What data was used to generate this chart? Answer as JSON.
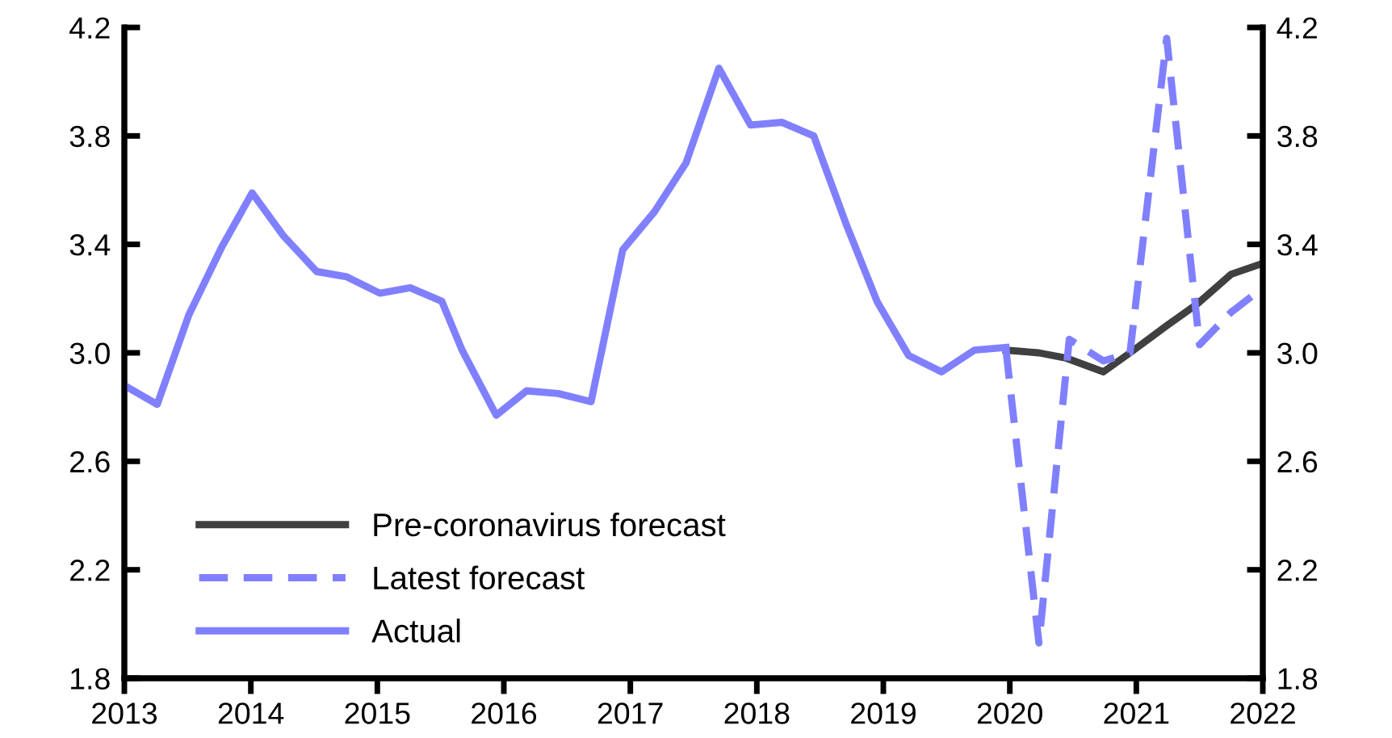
{
  "chart_data": {
    "type": "line",
    "xlim": [
      2013,
      2022
    ],
    "xticks": [
      2013,
      2014,
      2015,
      2016,
      2017,
      2018,
      2019,
      2020,
      2021,
      2022
    ],
    "ylim": [
      1.8,
      4.2
    ],
    "yticks": [
      {
        "value": 1.8,
        "label": "1.8"
      },
      {
        "value": 2.2,
        "label": "2.2"
      },
      {
        "value": 2.6,
        "label": "2.6"
      },
      {
        "value": 3.0,
        "label": "3.0"
      },
      {
        "value": 3.4,
        "label": "3.4"
      },
      {
        "value": 3.8,
        "label": "3.8"
      },
      {
        "value": 4.2,
        "label": "4.2"
      }
    ],
    "y2lim": [
      1.8,
      4.2
    ],
    "y2ticks": [
      {
        "value": 1.8,
        "label": "1.8"
      },
      {
        "value": 2.2,
        "label": "2.2"
      },
      {
        "value": 2.6,
        "label": "2.6"
      },
      {
        "value": 3.0,
        "label": "3.0"
      },
      {
        "value": 3.4,
        "label": "3.4"
      },
      {
        "value": 3.8,
        "label": "3.8"
      },
      {
        "value": 4.2,
        "label": "4.2"
      }
    ],
    "grid": false,
    "legend": "bottom left",
    "marker": "none",
    "series": [
      {
        "name": "Pre-coronavirus forecast",
        "color": "#404040",
        "line_style": "solid",
        "x": [
          2019.97,
          2020.23,
          2020.45,
          2020.74,
          2020.95,
          2021.24,
          2021.48,
          2021.75,
          2022.0
        ],
        "values": [
          3.01,
          3.0,
          2.98,
          2.93,
          3.0,
          3.1,
          3.18,
          3.29,
          3.33
        ]
      },
      {
        "name": "Latest forecast",
        "color": "#8080ff",
        "line_style": "dashed",
        "x": [
          2019.97,
          2020.23,
          2020.47,
          2020.74,
          2020.95,
          2021.24,
          2021.5,
          2021.75,
          2022.0
        ],
        "values": [
          3.01,
          1.93,
          3.05,
          2.97,
          3.0,
          4.16,
          3.03,
          3.15,
          3.24
        ]
      },
      {
        "name": "Actual",
        "color": "#8080ff",
        "line_style": "solid",
        "x": [
          2013.0,
          2013.26,
          2013.51,
          2013.77,
          2014.01,
          2014.26,
          2014.52,
          2014.76,
          2015.02,
          2015.26,
          2015.51,
          2015.67,
          2015.94,
          2016.18,
          2016.43,
          2016.69,
          2016.94,
          2017.19,
          2017.44,
          2017.7,
          2017.95,
          2018.2,
          2018.45,
          2018.71,
          2018.95,
          2019.2,
          2019.46,
          2019.72,
          2019.97
        ],
        "values": [
          2.88,
          2.81,
          3.14,
          3.39,
          3.59,
          3.43,
          3.3,
          3.28,
          3.22,
          3.24,
          3.19,
          3.01,
          2.77,
          2.86,
          2.85,
          2.82,
          3.38,
          3.52,
          3.7,
          4.05,
          3.84,
          3.85,
          3.8,
          3.47,
          3.19,
          2.99,
          2.93,
          3.01,
          3.02
        ]
      }
    ]
  }
}
